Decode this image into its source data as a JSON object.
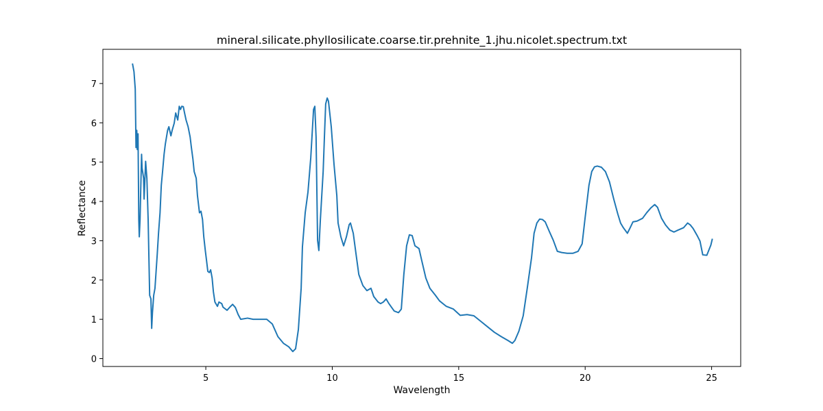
{
  "chart_data": {
    "type": "line",
    "title": "mineral.silicate.phyllosilicate.coarse.tir.prehnite_1.jhu.nicolet.spectrum.txt",
    "x_label": "Wavelength",
    "y_label": "Reflectance",
    "x": [
      2.1,
      2.16,
      2.21,
      2.24,
      2.27,
      2.29,
      2.32,
      2.35,
      2.37,
      2.4,
      2.46,
      2.48,
      2.54,
      2.56,
      2.62,
      2.67,
      2.72,
      2.78,
      2.83,
      2.86,
      2.89,
      2.94,
      2.99,
      3.08,
      3.13,
      3.19,
      3.24,
      3.29,
      3.35,
      3.4,
      3.49,
      3.54,
      3.62,
      3.67,
      3.75,
      3.81,
      3.89,
      3.95,
      4.0,
      4.05,
      4.11,
      4.16,
      4.22,
      4.3,
      4.38,
      4.43,
      4.49,
      4.54,
      4.62,
      4.67,
      4.75,
      4.81,
      4.87,
      4.92,
      4.98,
      5.03,
      5.08,
      5.14,
      5.19,
      5.25,
      5.3,
      5.36,
      5.46,
      5.52,
      5.63,
      5.68,
      5.84,
      5.95,
      6.06,
      6.17,
      6.28,
      6.38,
      6.65,
      6.87,
      7.09,
      7.41,
      7.63,
      7.85,
      8.07,
      8.28,
      8.44,
      8.55,
      8.66,
      8.77,
      8.82,
      8.93,
      9.04,
      9.15,
      9.26,
      9.31,
      9.36,
      9.42,
      9.47,
      9.53,
      9.64,
      9.69,
      9.74,
      9.8,
      9.85,
      9.96,
      10.07,
      10.18,
      10.23,
      10.34,
      10.45,
      10.56,
      10.67,
      10.72,
      10.83,
      10.94,
      11.05,
      11.21,
      11.37,
      11.53,
      11.64,
      11.81,
      11.91,
      12.02,
      12.13,
      12.24,
      12.35,
      12.45,
      12.62,
      12.73,
      12.83,
      12.94,
      13.05,
      13.16,
      13.27,
      13.43,
      13.54,
      13.7,
      13.86,
      14.08,
      14.24,
      14.51,
      14.79,
      15.06,
      15.33,
      15.6,
      15.87,
      16.14,
      16.41,
      16.68,
      16.95,
      17.12,
      17.22,
      17.38,
      17.55,
      17.71,
      17.88,
      17.98,
      18.09,
      18.2,
      18.31,
      18.42,
      18.58,
      18.74,
      18.9,
      19.07,
      19.29,
      19.51,
      19.72,
      19.88,
      19.99,
      20.15,
      20.26,
      20.37,
      20.48,
      20.64,
      20.8,
      20.96,
      21.13,
      21.29,
      21.4,
      21.51,
      21.67,
      21.78,
      21.89,
      22.05,
      22.27,
      22.43,
      22.59,
      22.75,
      22.86,
      23.02,
      23.18,
      23.35,
      23.51,
      23.67,
      23.89,
      24.05,
      24.16,
      24.27,
      24.43,
      24.54,
      24.65,
      24.81,
      24.97,
      25.03
    ],
    "series": [
      {
        "color": "#1f77b4",
        "values": [
          7.51,
          7.3,
          6.86,
          5.37,
          5.81,
          5.32,
          5.72,
          3.54,
          3.1,
          3.54,
          5.2,
          4.85,
          4.59,
          4.06,
          5.02,
          4.59,
          3.54,
          1.61,
          1.52,
          0.77,
          1.17,
          1.61,
          1.79,
          2.66,
          3.19,
          3.71,
          4.41,
          4.76,
          5.2,
          5.46,
          5.81,
          5.9,
          5.67,
          5.81,
          5.99,
          6.25,
          6.07,
          6.42,
          6.34,
          6.42,
          6.41,
          6.25,
          6.07,
          5.9,
          5.64,
          5.37,
          5.08,
          4.76,
          4.59,
          4.15,
          3.71,
          3.75,
          3.54,
          3.1,
          2.75,
          2.49,
          2.22,
          2.19,
          2.26,
          2.05,
          1.7,
          1.44,
          1.33,
          1.44,
          1.4,
          1.31,
          1.23,
          1.31,
          1.38,
          1.3,
          1.12,
          1.0,
          1.03,
          1.0,
          1.0,
          1.0,
          0.88,
          0.56,
          0.39,
          0.3,
          0.18,
          0.25,
          0.74,
          1.79,
          2.84,
          3.71,
          4.24,
          5.11,
          6.34,
          6.42,
          5.64,
          3.01,
          2.75,
          3.54,
          4.76,
          5.64,
          6.48,
          6.63,
          6.55,
          5.9,
          4.94,
          4.15,
          3.45,
          3.1,
          2.87,
          3.1,
          3.41,
          3.45,
          3.19,
          2.66,
          2.14,
          1.86,
          1.73,
          1.79,
          1.58,
          1.44,
          1.4,
          1.44,
          1.52,
          1.4,
          1.3,
          1.21,
          1.17,
          1.26,
          2.14,
          2.87,
          3.15,
          3.13,
          2.87,
          2.8,
          2.49,
          2.05,
          1.79,
          1.61,
          1.47,
          1.33,
          1.26,
          1.1,
          1.12,
          1.09,
          0.95,
          0.81,
          0.67,
          0.56,
          0.46,
          0.39,
          0.46,
          0.7,
          1.09,
          1.79,
          2.57,
          3.19,
          3.45,
          3.55,
          3.54,
          3.48,
          3.24,
          3.01,
          2.73,
          2.7,
          2.68,
          2.68,
          2.73,
          2.92,
          3.54,
          4.41,
          4.76,
          4.88,
          4.9,
          4.87,
          4.76,
          4.5,
          4.06,
          3.68,
          3.45,
          3.33,
          3.19,
          3.33,
          3.48,
          3.5,
          3.57,
          3.71,
          3.83,
          3.92,
          3.85,
          3.57,
          3.4,
          3.27,
          3.22,
          3.27,
          3.33,
          3.45,
          3.4,
          3.31,
          3.13,
          2.99,
          2.64,
          2.63,
          2.89,
          3.05
        ]
      }
    ],
    "xlim": [
      0.93,
      26.15
    ],
    "ylim": [
      -0.2,
      7.87
    ],
    "xticks": [
      5,
      10,
      15,
      20,
      25
    ],
    "yticks": [
      0,
      1,
      2,
      3,
      4,
      5,
      6,
      7
    ]
  }
}
